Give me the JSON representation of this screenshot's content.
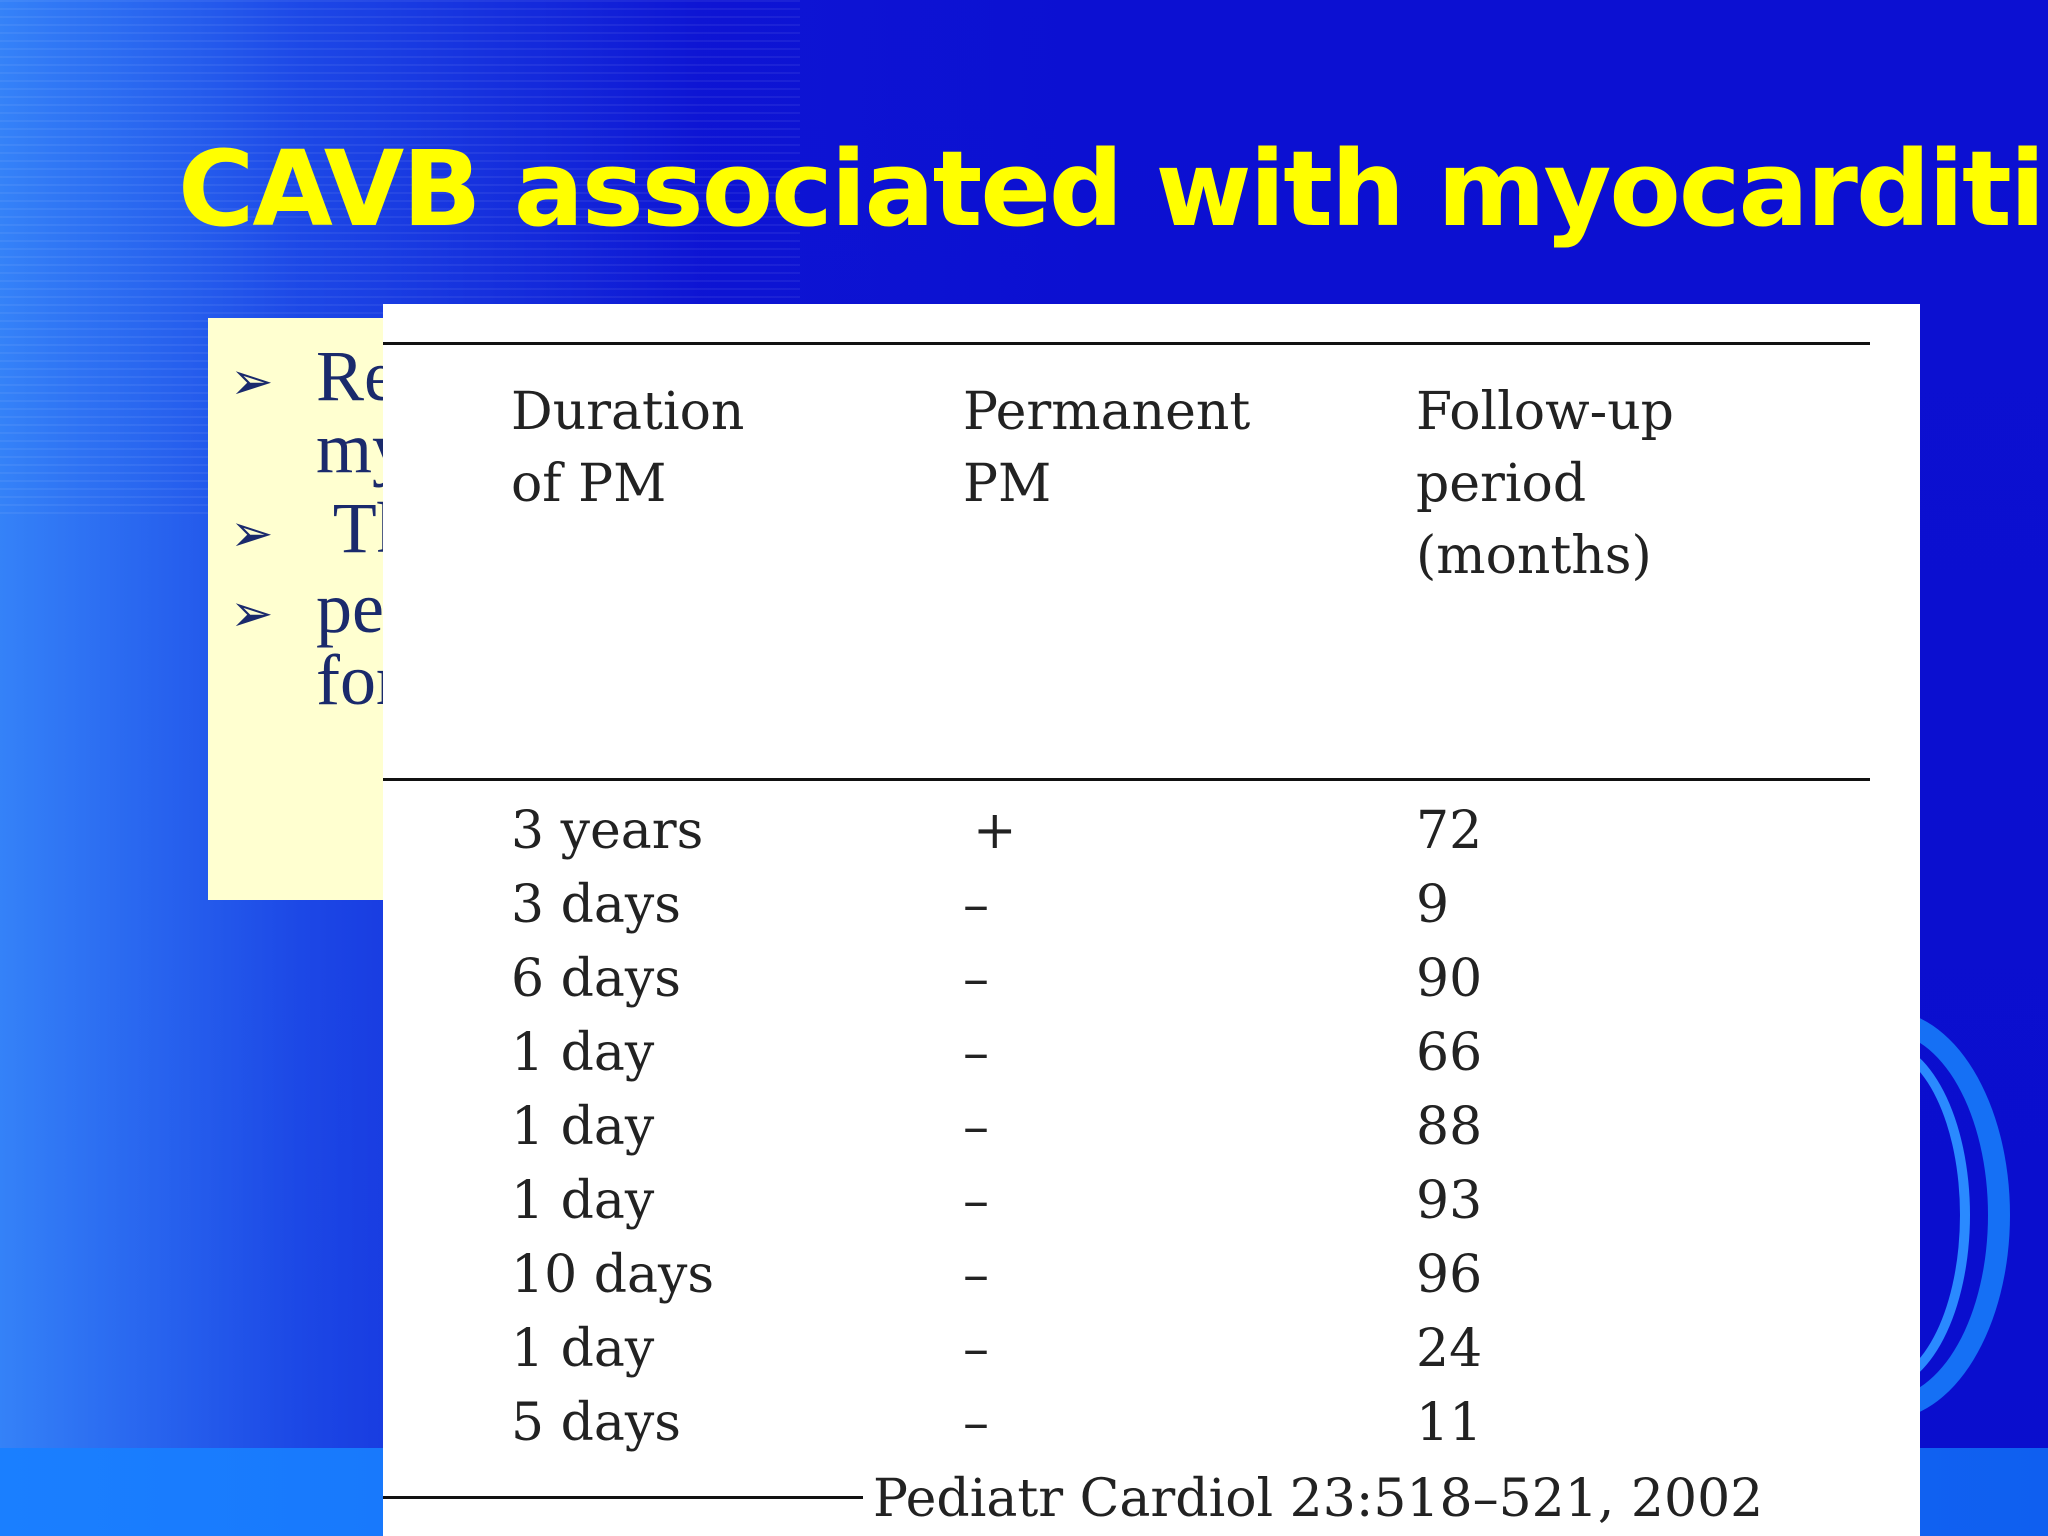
{
  "slide": {
    "title": "CAVB associated with myocarditis",
    "colors": {
      "background": "#0a0ed0",
      "title": "#ffff00",
      "bullet_panel": "#ffffd0",
      "bullet_text": "#1a2a6c"
    },
    "bullets": [
      {
        "icon": "arrow-bullet-icon",
        "lines": [
          "Re",
          "my"
        ]
      },
      {
        "icon": "arrow-bullet-icon",
        "lines": [
          " Th"
        ]
      },
      {
        "icon": "arrow-bullet-icon",
        "lines": [
          "pe",
          "for"
        ]
      }
    ]
  },
  "table": {
    "columns": [
      "Duration\nof PM",
      "Permanent\nPM",
      "Follow-up\nperiod\n(months)"
    ],
    "rows": [
      [
        "3 years",
        "+",
        "72"
      ],
      [
        "3 days",
        "–",
        "9"
      ],
      [
        "6 days",
        "–",
        "90"
      ],
      [
        "1 day",
        "–",
        "66"
      ],
      [
        "1 day",
        "–",
        "88"
      ],
      [
        "1 day",
        "–",
        "93"
      ],
      [
        "10 days",
        "–",
        "96"
      ],
      [
        "1 day",
        "–",
        "24"
      ],
      [
        "5 days",
        "–",
        "11"
      ]
    ],
    "citation": "Pediatr Cardiol 23:518–521, 2002"
  }
}
